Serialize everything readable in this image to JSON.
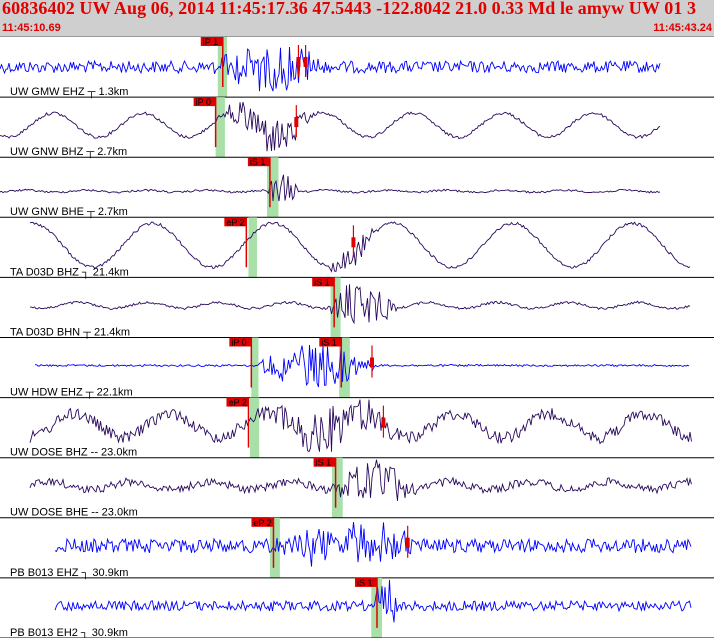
{
  "window": {
    "title": "60836402 UW Aug 06, 2014 11:45:17.36    47.5443 -122.8042 21.0 0.33 Md le amyw UW 01   3",
    "time_start": "11:45:10.69",
    "time_end": "11:45:43.24"
  },
  "colors": {
    "title_bar": "#cfcfcf",
    "accent_red": "#e00000",
    "trace_blue": "#0000ff",
    "trace_purple": "#2a0a5e",
    "pick_band": "#a8e0a8",
    "divider": "#000000"
  },
  "traces": [
    {
      "label": "UW GMW EHZ ┬ 1.3km",
      "color": "blue",
      "picks": [
        {
          "label": "iP 1",
          "pos": 0.312
        }
      ],
      "band": [
        0.305,
        0.318
      ],
      "markers": [
        0.418,
        0.428
      ]
    },
    {
      "label": "UW GNW BHZ ┬ 2.7km",
      "color": "purple",
      "picks": [
        {
          "label": "iP 0",
          "pos": 0.302
        }
      ],
      "band": [
        0.302,
        0.315
      ],
      "markers": [
        0.415
      ]
    },
    {
      "label": "UW GNW BHE ┬ 2.7km",
      "color": "purple",
      "picks": [
        {
          "label": "iS 1",
          "pos": 0.378
        }
      ],
      "band": [
        0.374,
        0.39
      ],
      "markers": []
    },
    {
      "label": "TA D03D BHZ ┐ 21.4km",
      "color": "purple",
      "picks": [
        {
          "label": "eP 2",
          "pos": 0.345
        }
      ],
      "band": [
        0.348,
        0.36
      ],
      "markers": [
        0.495
      ]
    },
    {
      "label": "TA D03D BHN ┬ 21.4km",
      "color": "purple",
      "picks": [
        {
          "label": "iS 1",
          "pos": 0.468
        }
      ],
      "band": [
        0.463,
        0.477
      ],
      "markers": []
    },
    {
      "label": "UW HDW EHZ ┬ 22.1km",
      "color": "blue",
      "picks": [
        {
          "label": "iP 0",
          "pos": 0.352
        },
        {
          "label": "iS 1",
          "pos": 0.478
        }
      ],
      "band": [
        0.352,
        0.362
      ],
      "band2": [
        0.475,
        0.49
      ],
      "markers": [
        0.521
      ]
    },
    {
      "label": "UW DOSE BHZ -- 23.0km",
      "color": "purple",
      "picks": [
        {
          "label": "eP 2",
          "pos": 0.348
        }
      ],
      "band": [
        0.35,
        0.363
      ],
      "markers": [
        0.537
      ]
    },
    {
      "label": "UW DOSE BHE -- 23.0km",
      "color": "purple",
      "picks": [
        {
          "label": "iS 1",
          "pos": 0.47
        }
      ],
      "band": [
        0.465,
        0.48
      ],
      "markers": []
    },
    {
      "label": "PB B013 EHZ ┐ 30.9km",
      "color": "blue",
      "picks": [
        {
          "label": "eP 2",
          "pos": 0.383
        }
      ],
      "band": [
        0.378,
        0.392
      ],
      "markers": [
        0.571
      ]
    },
    {
      "label": "PB B013 EH2 ┐ 30.9km",
      "color": "blue",
      "picks": [
        {
          "label": "iS 1",
          "pos": 0.528
        }
      ],
      "band": [
        0.52,
        0.535
      ],
      "markers": []
    }
  ]
}
